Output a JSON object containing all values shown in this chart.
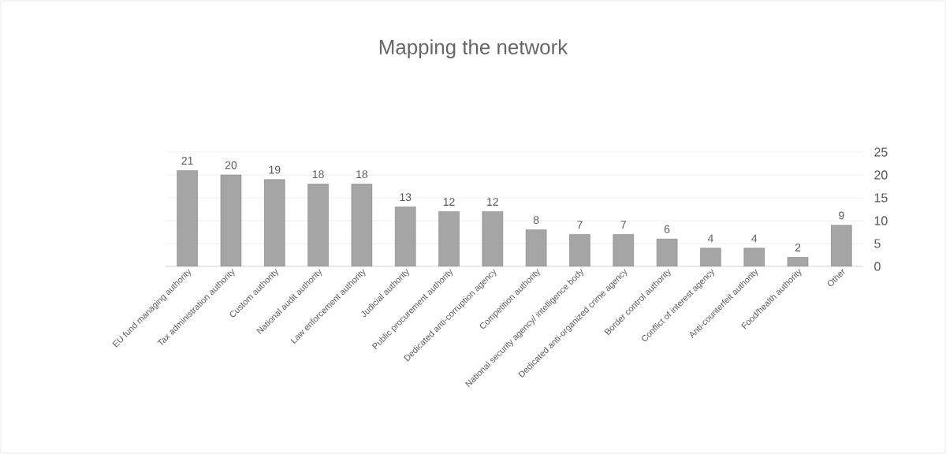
{
  "chart_data": {
    "type": "bar",
    "title": "Mapping the network",
    "categories": [
      "EU fund managing authority",
      "Tax administration authority",
      "Custom authority",
      "National audit authority",
      "Law enforcement authority",
      "Judicial authority",
      "Public procurement authority",
      "Dedicated anti-corruption agency",
      "Competition authority",
      "National security agency/ intelligence body",
      "Dedicated anti-organized crime agency",
      "Border control authority",
      "Conflict of interest agency",
      "Anti-counterfeit authority",
      "Food/health authority",
      "Other"
    ],
    "values": [
      21,
      20,
      19,
      18,
      18,
      13,
      12,
      12,
      8,
      7,
      7,
      6,
      4,
      4,
      2,
      9
    ],
    "color": "#a5a5a5",
    "ylim": [
      0,
      25
    ],
    "yticks": [
      0,
      5,
      10,
      15,
      20,
      25
    ],
    "grid": "y",
    "data_labels": true
  }
}
